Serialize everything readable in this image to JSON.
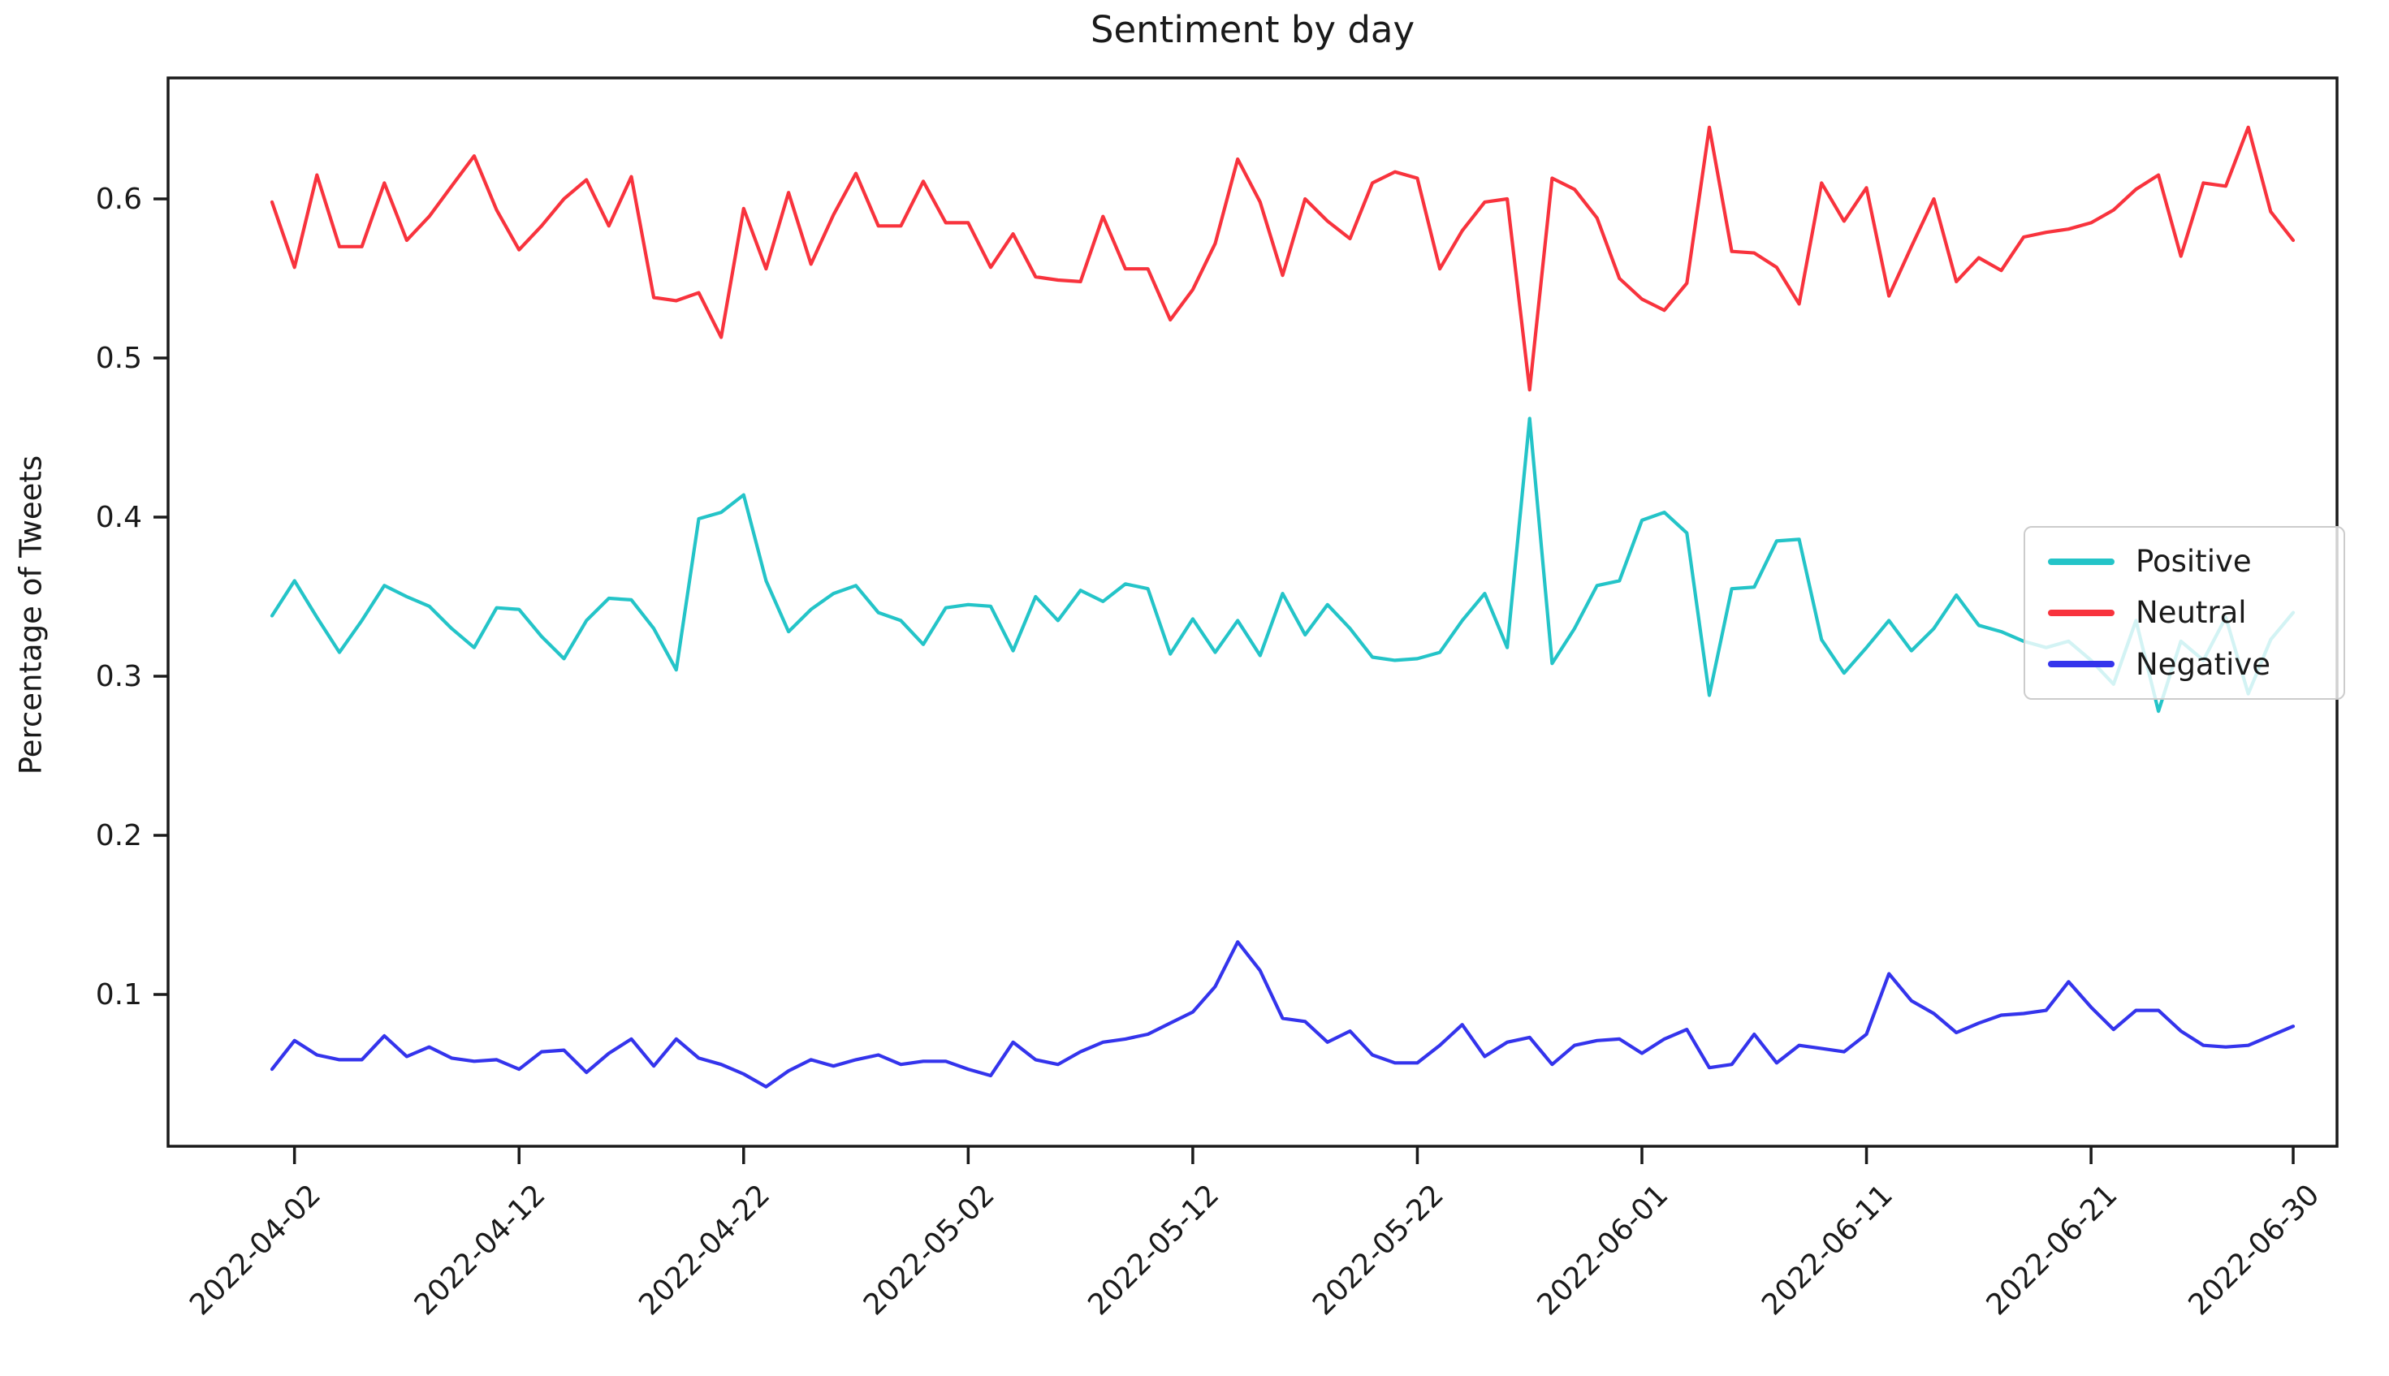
{
  "figure": {
    "title": "Sentiment by day",
    "ylabel": "Percentage of Tweets"
  },
  "legend": {
    "entries": [
      {
        "label": "Positive",
        "color": "#24c4c8"
      },
      {
        "label": "Neutral",
        "color": "#f8333d"
      },
      {
        "label": "Negative",
        "color": "#3434ec"
      }
    ]
  },
  "axes": {
    "spine_color": "#1a1a1a",
    "tick_label_color": "#1a1a1a",
    "yticks": [
      0.1,
      0.2,
      0.3,
      0.4,
      0.5,
      0.6
    ],
    "xtick_labels": [
      "2022-04-02",
      "2022-04-12",
      "2022-04-22",
      "2022-05-02",
      "2022-05-12",
      "2022-05-22",
      "2022-06-01",
      "2022-06-11",
      "2022-06-21",
      "2022-06-30"
    ]
  },
  "chart_data": {
    "type": "line",
    "title": "Sentiment by day",
    "xlabel": "",
    "ylabel": "Percentage of Tweets",
    "ylim": [
      0.03,
      0.675
    ],
    "grid": false,
    "legend_position": "right",
    "x": [
      "2022-04-01",
      "2022-04-02",
      "2022-04-03",
      "2022-04-04",
      "2022-04-05",
      "2022-04-06",
      "2022-04-07",
      "2022-04-08",
      "2022-04-09",
      "2022-04-10",
      "2022-04-11",
      "2022-04-12",
      "2022-04-13",
      "2022-04-14",
      "2022-04-15",
      "2022-04-16",
      "2022-04-17",
      "2022-04-18",
      "2022-04-19",
      "2022-04-20",
      "2022-04-21",
      "2022-04-22",
      "2022-04-23",
      "2022-04-24",
      "2022-04-25",
      "2022-04-26",
      "2022-04-27",
      "2022-04-28",
      "2022-04-29",
      "2022-04-30",
      "2022-05-01",
      "2022-05-02",
      "2022-05-03",
      "2022-05-04",
      "2022-05-05",
      "2022-05-06",
      "2022-05-07",
      "2022-05-08",
      "2022-05-09",
      "2022-05-10",
      "2022-05-11",
      "2022-05-12",
      "2022-05-13",
      "2022-05-14",
      "2022-05-15",
      "2022-05-16",
      "2022-05-17",
      "2022-05-18",
      "2022-05-19",
      "2022-05-20",
      "2022-05-21",
      "2022-05-22",
      "2022-05-23",
      "2022-05-24",
      "2022-05-25",
      "2022-05-26",
      "2022-05-27",
      "2022-05-28",
      "2022-05-29",
      "2022-05-30",
      "2022-05-31",
      "2022-06-01",
      "2022-06-02",
      "2022-06-03",
      "2022-06-04",
      "2022-06-05",
      "2022-06-06",
      "2022-06-07",
      "2022-06-08",
      "2022-06-09",
      "2022-06-10",
      "2022-06-11",
      "2022-06-12",
      "2022-06-13",
      "2022-06-14",
      "2022-06-15",
      "2022-06-16",
      "2022-06-17",
      "2022-06-18",
      "2022-06-19",
      "2022-06-20",
      "2022-06-21",
      "2022-06-22",
      "2022-06-23",
      "2022-06-24",
      "2022-06-25",
      "2022-06-26",
      "2022-06-27",
      "2022-06-28",
      "2022-06-29",
      "2022-06-30"
    ],
    "series": [
      {
        "name": "Positive",
        "color": "#24c4c8",
        "values": [
          0.338,
          0.36,
          0.337,
          0.315,
          0.335,
          0.357,
          0.35,
          0.344,
          0.33,
          0.318,
          0.343,
          0.342,
          0.325,
          0.311,
          0.335,
          0.349,
          0.348,
          0.33,
          0.304,
          0.399,
          0.403,
          0.414,
          0.36,
          0.328,
          0.342,
          0.352,
          0.357,
          0.34,
          0.335,
          0.32,
          0.343,
          0.345,
          0.344,
          0.316,
          0.35,
          0.335,
          0.354,
          0.347,
          0.358,
          0.355,
          0.314,
          0.336,
          0.315,
          0.335,
          0.313,
          0.352,
          0.326,
          0.345,
          0.33,
          0.312,
          0.31,
          0.311,
          0.315,
          0.335,
          0.352,
          0.318,
          0.462,
          0.308,
          0.33,
          0.357,
          0.36,
          0.398,
          0.403,
          0.39,
          0.288,
          0.355,
          0.356,
          0.385,
          0.386,
          0.323,
          0.302,
          0.318,
          0.335,
          0.316,
          0.33,
          0.351,
          0.332,
          0.328,
          0.322,
          0.318,
          0.322,
          0.31,
          0.295,
          0.335,
          0.278,
          0.322,
          0.31,
          0.337,
          0.289,
          0.323,
          0.34
        ]
      },
      {
        "name": "Neutral",
        "color": "#f8333d",
        "values": [
          0.598,
          0.557,
          0.615,
          0.57,
          0.57,
          0.61,
          0.574,
          0.589,
          0.608,
          0.627,
          0.593,
          0.568,
          0.583,
          0.6,
          0.612,
          0.583,
          0.614,
          0.538,
          0.536,
          0.541,
          0.513,
          0.594,
          0.556,
          0.604,
          0.559,
          0.59,
          0.616,
          0.583,
          0.583,
          0.611,
          0.585,
          0.585,
          0.557,
          0.578,
          0.551,
          0.549,
          0.548,
          0.589,
          0.556,
          0.556,
          0.524,
          0.543,
          0.572,
          0.625,
          0.598,
          0.552,
          0.6,
          0.586,
          0.575,
          0.61,
          0.617,
          0.613,
          0.556,
          0.58,
          0.598,
          0.6,
          0.48,
          0.613,
          0.606,
          0.588,
          0.55,
          0.537,
          0.53,
          0.547,
          0.645,
          0.567,
          0.566,
          0.557,
          0.534,
          0.61,
          0.586,
          0.607,
          0.539,
          0.57,
          0.6,
          0.548,
          0.563,
          0.555,
          0.576,
          0.579,
          0.581,
          0.585,
          0.593,
          0.606,
          0.615,
          0.564,
          0.61,
          0.608,
          0.645,
          0.592,
          0.574
        ]
      },
      {
        "name": "Negative",
        "color": "#3434ec",
        "values": [
          0.053,
          0.071,
          0.062,
          0.059,
          0.059,
          0.074,
          0.061,
          0.067,
          0.06,
          0.058,
          0.059,
          0.053,
          0.064,
          0.065,
          0.051,
          0.063,
          0.072,
          0.055,
          0.072,
          0.06,
          0.056,
          0.05,
          0.042,
          0.052,
          0.059,
          0.055,
          0.059,
          0.062,
          0.056,
          0.058,
          0.058,
          0.053,
          0.049,
          0.07,
          0.059,
          0.056,
          0.064,
          0.07,
          0.072,
          0.075,
          0.082,
          0.089,
          0.105,
          0.133,
          0.115,
          0.085,
          0.083,
          0.07,
          0.077,
          0.062,
          0.057,
          0.057,
          0.068,
          0.081,
          0.061,
          0.07,
          0.073,
          0.056,
          0.068,
          0.071,
          0.072,
          0.063,
          0.072,
          0.078,
          0.054,
          0.056,
          0.075,
          0.057,
          0.068,
          0.066,
          0.064,
          0.075,
          0.113,
          0.096,
          0.088,
          0.076,
          0.082,
          0.087,
          0.088,
          0.09,
          0.108,
          0.092,
          0.078,
          0.09,
          0.09,
          0.077,
          0.068,
          0.067,
          0.068,
          0.074,
          0.08
        ]
      }
    ]
  }
}
